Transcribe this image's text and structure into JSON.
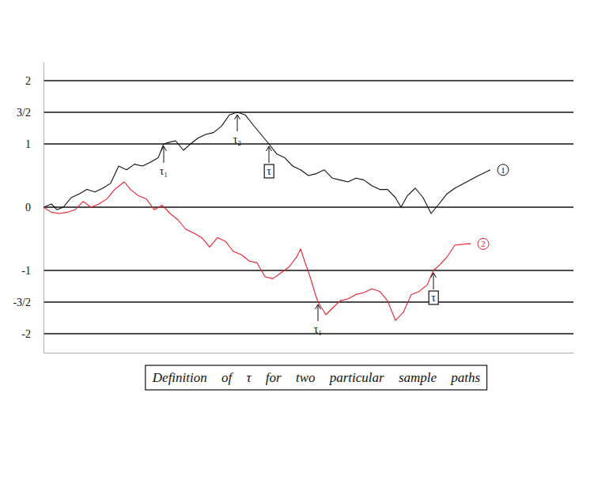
{
  "chart_data": {
    "type": "line",
    "title": "Definition of τ for two particular sample paths",
    "xlim": [
      0,
      670
    ],
    "ylim": [
      -2.3,
      2.3
    ],
    "yticks": [
      2,
      {
        "value": 1.5,
        "label": "3/2"
      },
      1,
      0,
      -1,
      {
        "value": -1.5,
        "label": "-3/2"
      },
      -2
    ],
    "grid": true,
    "tick_labels": "y",
    "series": [
      {
        "name": "1",
        "color": "#111111",
        "x": [
          0,
          10,
          17,
          25,
          35,
          45,
          55,
          65,
          75,
          85,
          95,
          105,
          115,
          125,
          135,
          145,
          152,
          160,
          167,
          177,
          185,
          195,
          205,
          215,
          225,
          235,
          245,
          255,
          265,
          275,
          285,
          295,
          305,
          315,
          325,
          335,
          345,
          355,
          365,
          375,
          385,
          395,
          405,
          415,
          425,
          435,
          445,
          452,
          460,
          470,
          480,
          490,
          500,
          510,
          520,
          535,
          550,
          565
        ],
        "values": [
          0,
          0.05,
          -0.04,
          0,
          0.15,
          0.21,
          0.28,
          0.24,
          0.3,
          0.38,
          0.65,
          0.59,
          0.68,
          0.65,
          0.71,
          0.78,
          1,
          1.03,
          1.05,
          0.9,
          0.99,
          1.09,
          1.15,
          1.18,
          1.28,
          1.46,
          1.5,
          1.46,
          1.3,
          1.15,
          1,
          0.84,
          0.78,
          0.65,
          0.59,
          0.5,
          0.53,
          0.59,
          0.46,
          0.43,
          0.4,
          0.46,
          0.43,
          0.34,
          0.28,
          0.28,
          0.15,
          0,
          0.18,
          0.3,
          0.15,
          -0.1,
          0.05,
          0.21,
          0.3,
          0.4,
          0.5,
          0.59
        ]
      },
      {
        "name": "2",
        "color": "#e8202a",
        "x": [
          0,
          10,
          20,
          30,
          40,
          50,
          60,
          70,
          80,
          90,
          102,
          110,
          120,
          130,
          140,
          150,
          160,
          170,
          180,
          190,
          200,
          210,
          220,
          230,
          240,
          250,
          260,
          270,
          280,
          290,
          300,
          310,
          320,
          325,
          330,
          337,
          343,
          347,
          357,
          365,
          375,
          385,
          395,
          405,
          415,
          425,
          435,
          445,
          455,
          465,
          475,
          485,
          493,
          501,
          510,
          520,
          535,
          540
        ],
        "values": [
          0,
          -0.08,
          -0.1,
          -0.08,
          -0.04,
          0.09,
          0,
          0.05,
          0.13,
          0.28,
          0.4,
          0.28,
          0.18,
          0.13,
          -0.04,
          0.03,
          -0.1,
          -0.2,
          -0.35,
          -0.41,
          -0.48,
          -0.63,
          -0.48,
          -0.54,
          -0.7,
          -0.75,
          -0.85,
          -0.88,
          -1.1,
          -1.13,
          -1.04,
          -0.95,
          -0.79,
          -0.66,
          -0.85,
          -1.1,
          -1.35,
          -1.5,
          -1.7,
          -1.6,
          -1.48,
          -1.45,
          -1.38,
          -1.35,
          -1.29,
          -1.33,
          -1.48,
          -1.79,
          -1.66,
          -1.38,
          -1.33,
          -1.23,
          -1,
          -0.91,
          -0.79,
          -0.6,
          -0.58,
          -0.58
        ]
      }
    ],
    "annotations": [
      {
        "text": "τ₁",
        "x": 152,
        "y": 1,
        "marker": "none"
      },
      {
        "text": "τ₂",
        "x": 245,
        "y": 1.5,
        "marker": "none"
      },
      {
        "text": "τ",
        "x": 285,
        "y": 1,
        "marker": "box"
      },
      {
        "text": "τ₁",
        "x": 347,
        "y": -1.5,
        "marker": "none"
      },
      {
        "text": "τ",
        "x": 493,
        "y": -1,
        "marker": "box"
      }
    ]
  }
}
